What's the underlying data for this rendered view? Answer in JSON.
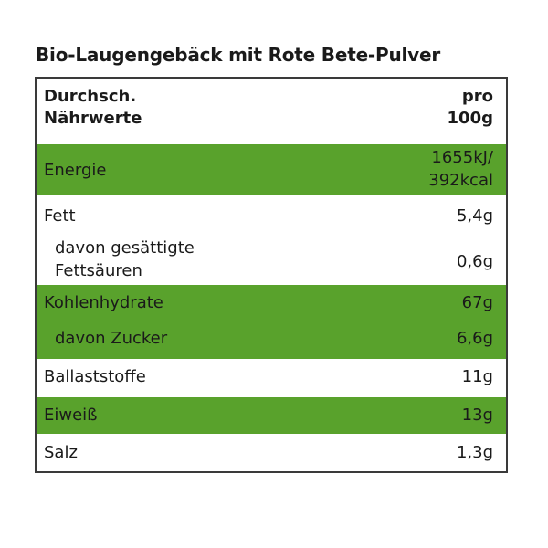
{
  "title": "Bio-Laugengebäck mit Rote Bete-Pulver",
  "header": {
    "label_line1": "Durchsch.",
    "label_line2": "Nährwerte",
    "value_line1": "pro",
    "value_line2": "100g"
  },
  "rows": [
    {
      "label_line1": "Energie",
      "value_line1": "1655kJ/",
      "value_line2": "392kcal"
    },
    {
      "label_line1": "Fett",
      "value_line1": "5,4g"
    },
    {
      "label_line1": "davon gesättigte",
      "label_line2": "Fettsäuren",
      "value_line1": "0,6g"
    },
    {
      "label_line1": "Kohlenhydrate",
      "value_line1": "67g"
    },
    {
      "label_line1": "davon Zucker",
      "value_line1": "6,6g"
    },
    {
      "label_line1": "Ballaststoffe",
      "value_line1": "11g"
    },
    {
      "label_line1": "Eiweiß",
      "value_line1": "13g"
    },
    {
      "label_line1": "Salz",
      "value_line1": "1,3g"
    }
  ],
  "colors": {
    "green": "#59a22c",
    "border": "#3a3a3a",
    "text": "#1a1a1a"
  }
}
